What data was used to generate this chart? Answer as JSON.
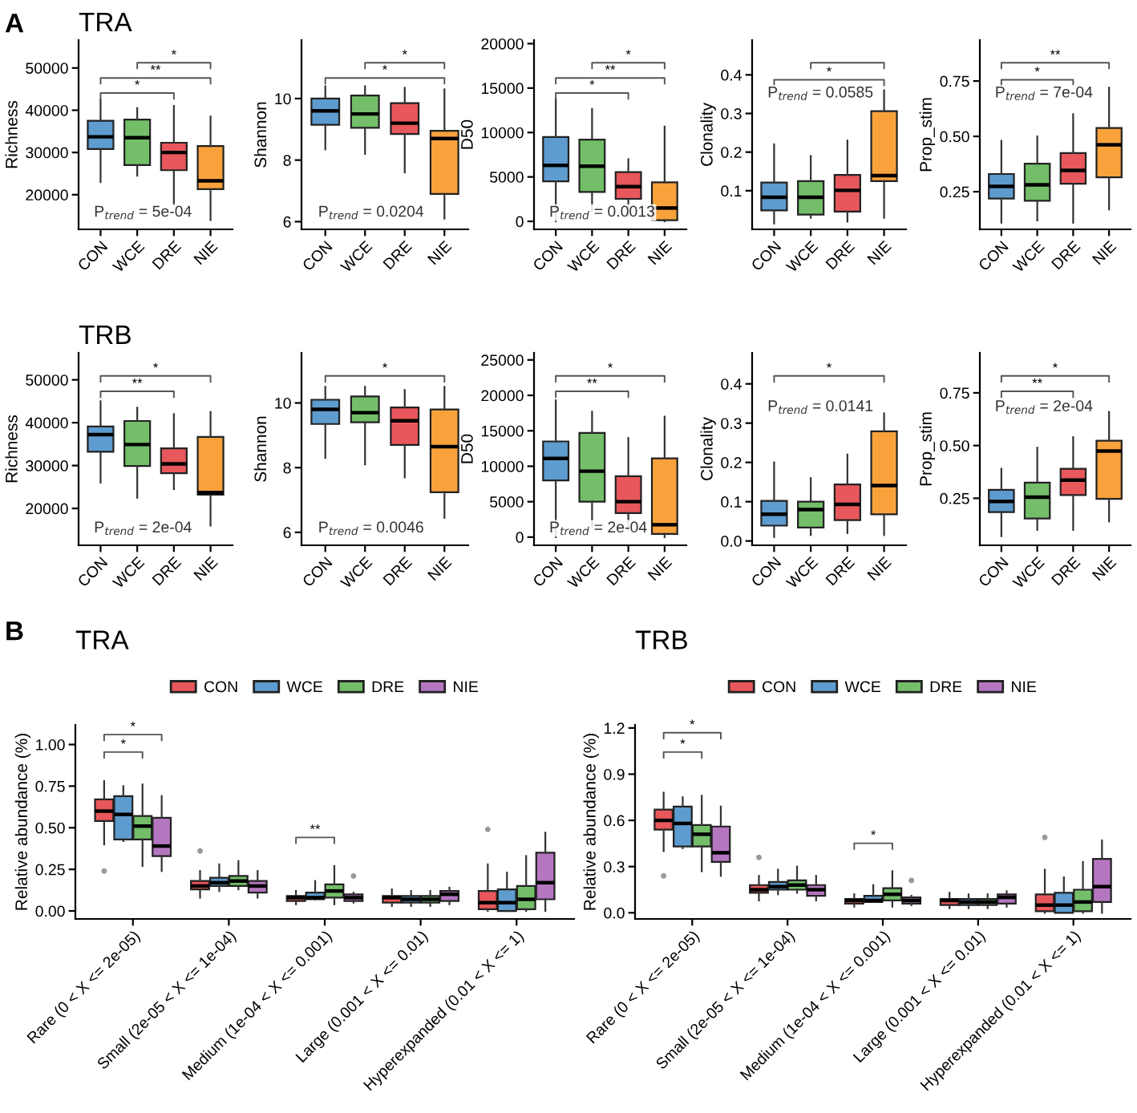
{
  "chart_data": [
    {
      "type": "box",
      "title": "TRA",
      "ylabel": "Richness",
      "categories": [
        "CON",
        "WCE",
        "DRE",
        "NIE"
      ],
      "colors": [
        "#5e9ccf",
        "#74be6a",
        "#e8575b",
        "#f9a23c"
      ],
      "ylim": [
        11800,
        56600
      ],
      "yticks": [
        20000,
        30000,
        40000,
        50000
      ],
      "grid": false,
      "annotations": [
        "A",
        "P$_{trend}$ = 5e-04",
        "*",
        "**",
        "*"
      ],
      "boxes": [
        {
          "low": 23000,
          "q1": 30800,
          "median": 33700,
          "q3": 37500,
          "high": 42500
        },
        {
          "low": 24500,
          "q1": 27000,
          "median": 33500,
          "q3": 37800,
          "high": 40500
        },
        {
          "low": 17500,
          "q1": 25800,
          "median": 30000,
          "q3": 32300,
          "high": 41000
        },
        {
          "low": 14000,
          "q1": 21300,
          "median": 23300,
          "q3": 31500,
          "high": 38500
        }
      ]
    },
    {
      "type": "box",
      "ylabel": "Shannon",
      "categories": [
        "CON",
        "WCE",
        "DRE",
        "NIE"
      ],
      "colors": [
        "#5e9ccf",
        "#74be6a",
        "#e8575b",
        "#f9a23c"
      ],
      "ylim": [
        5.75,
        11.9
      ],
      "yticks": [
        6,
        8,
        10
      ],
      "grid": false,
      "annotations": [
        "P$_{trend}$ = 0.0204",
        "*",
        "*"
      ],
      "boxes": [
        {
          "low": 8.35,
          "q1": 9.15,
          "median": 9.6,
          "q3": 10.0,
          "high": 10.4
        },
        {
          "low": 8.2,
          "q1": 9.05,
          "median": 9.5,
          "q3": 10.1,
          "high": 10.4
        },
        {
          "low": 7.6,
          "q1": 8.85,
          "median": 9.2,
          "q3": 9.85,
          "high": 10.35
        },
        {
          "low": 6.1,
          "q1": 6.9,
          "median": 8.7,
          "q3": 8.95,
          "high": 10.3
        }
      ]
    },
    {
      "type": "box",
      "ylabel": "D50",
      "categories": [
        "CON",
        "WCE",
        "DRE",
        "NIE"
      ],
      "colors": [
        "#5e9ccf",
        "#74be6a",
        "#e8575b",
        "#f9a23c"
      ],
      "ylim": [
        -900,
        20400
      ],
      "yticks": [
        0,
        5000,
        10000,
        15000,
        20000
      ],
      "grid": false,
      "annotations": [
        "P$_{trend}$ = 0.0013",
        "*",
        "**",
        "*"
      ],
      "boxes": [
        {
          "low": 0,
          "q1": 4500,
          "median": 6300,
          "q3": 9500,
          "high": 13800
        },
        {
          "low": 1200,
          "q1": 3300,
          "median": 6200,
          "q3": 9200,
          "high": 12650
        },
        {
          "low": 600,
          "q1": 2530,
          "median": 3900,
          "q3": 5540,
          "high": 7000
        },
        {
          "low": 0,
          "q1": 120,
          "median": 1500,
          "q3": 4400,
          "high": 10660
        }
      ]
    },
    {
      "type": "box",
      "ylabel": "Clonality",
      "categories": [
        "CON",
        "WCE",
        "DRE",
        "NIE"
      ],
      "colors": [
        "#5e9ccf",
        "#74be6a",
        "#e8575b",
        "#f9a23c"
      ],
      "ylim": [
        0,
        0.49
      ],
      "yticks": [
        0.1,
        0.2,
        0.3,
        0.4
      ],
      "grid": false,
      "annotations": [
        "P$_{trend}$ = 0.0585",
        "*"
      ],
      "boxes": [
        {
          "low": 0.015,
          "q1": 0.049,
          "median": 0.083,
          "q3": 0.121,
          "high": 0.22
        },
        {
          "low": 0.03,
          "q1": 0.038,
          "median": 0.083,
          "q3": 0.125,
          "high": 0.19
        },
        {
          "low": 0.02,
          "q1": 0.046,
          "median": 0.101,
          "q3": 0.141,
          "high": 0.23
        },
        {
          "low": 0.03,
          "q1": 0.125,
          "median": 0.139,
          "q3": 0.306,
          "high": 0.36
        }
      ]
    },
    {
      "type": "box",
      "ylabel": "Prop_stim",
      "categories": [
        "CON",
        "WCE",
        "DRE",
        "NIE"
      ],
      "colors": [
        "#5e9ccf",
        "#74be6a",
        "#e8575b",
        "#f9a23c"
      ],
      "ylim": [
        0.08,
        0.935
      ],
      "yticks": [
        0.25,
        {
          "value": 0.5,
          "label": "0.50"
        },
        0.75
      ],
      "grid": false,
      "annotations": [
        "P$_{trend}$ = 7e-04",
        "*",
        "**"
      ],
      "boxes": [
        {
          "low": 0.11,
          "q1": 0.219,
          "median": 0.274,
          "q3": 0.33,
          "high": 0.48
        },
        {
          "low": 0.12,
          "q1": 0.209,
          "median": 0.281,
          "q3": 0.377,
          "high": 0.5
        },
        {
          "low": 0.11,
          "q1": 0.286,
          "median": 0.346,
          "q3": 0.425,
          "high": 0.6
        },
        {
          "low": 0.17,
          "q1": 0.315,
          "median": 0.462,
          "q3": 0.538,
          "high": 0.72
        }
      ]
    },
    {
      "type": "box",
      "title": "TRB",
      "ylabel": "Richness",
      "categories": [
        "CON",
        "WCE",
        "DRE",
        "NIE"
      ],
      "colors": [
        "#5e9ccf",
        "#74be6a",
        "#e8575b",
        "#f9a23c"
      ],
      "ylim": [
        11400,
        56300
      ],
      "yticks": [
        20000,
        30000,
        40000,
        50000
      ],
      "grid": false,
      "annotations": [
        "P$_{trend}$ = 2e-04",
        "**",
        "*"
      ],
      "boxes": [
        {
          "low": 26000,
          "q1": 33200,
          "median": 37200,
          "q3": 39100,
          "high": 45000
        },
        {
          "low": 22500,
          "q1": 29900,
          "median": 34900,
          "q3": 40400,
          "high": 43500
        },
        {
          "low": 24500,
          "q1": 28200,
          "median": 30400,
          "q3": 34000,
          "high": 42000
        },
        {
          "low": 16000,
          "q1": 23200,
          "median": 23700,
          "q3": 36700,
          "high": 42500
        }
      ]
    },
    {
      "type": "box",
      "ylabel": "Shannon",
      "categories": [
        "CON",
        "WCE",
        "DRE",
        "NIE"
      ],
      "colors": [
        "#5e9ccf",
        "#74be6a",
        "#e8575b",
        "#f9a23c"
      ],
      "ylim": [
        5.6,
        11.55
      ],
      "yticks": [
        6,
        8,
        10
      ],
      "grid": false,
      "annotations": [
        "P$_{trend}$ = 0.0046",
        "*"
      ],
      "boxes": [
        {
          "low": 8.3,
          "q1": 9.35,
          "median": 9.8,
          "q3": 10.1,
          "high": 10.5
        },
        {
          "low": 8.1,
          "q1": 9.4,
          "median": 9.7,
          "q3": 10.2,
          "high": 10.5
        },
        {
          "low": 7.7,
          "q1": 8.7,
          "median": 9.45,
          "q3": 9.86,
          "high": 10.4
        },
        {
          "low": 6.45,
          "q1": 7.24,
          "median": 8.65,
          "q3": 9.8,
          "high": 10.5
        }
      ]
    },
    {
      "type": "box",
      "ylabel": "D50",
      "categories": [
        "CON",
        "WCE",
        "DRE",
        "NIE"
      ],
      "colors": [
        "#5e9ccf",
        "#74be6a",
        "#e8575b",
        "#f9a23c"
      ],
      "ylim": [
        -1150,
        26000
      ],
      "yticks": [
        0,
        5000,
        10000,
        15000,
        20000,
        25000
      ],
      "grid": false,
      "annotations": [
        "P$_{trend}$ = 2e-04",
        "**",
        "*"
      ],
      "boxes": [
        {
          "low": 0,
          "q1": 8000,
          "median": 11100,
          "q3": 13500,
          "high": 19300
        },
        {
          "low": 1500,
          "q1": 5000,
          "median": 9300,
          "q3": 14700,
          "high": 17700
        },
        {
          "low": 1000,
          "q1": 3400,
          "median": 5000,
          "q3": 8600,
          "high": 14000
        },
        {
          "low": 0,
          "q1": 450,
          "median": 1750,
          "q3": 11100,
          "high": 17000
        }
      ]
    },
    {
      "type": "box",
      "ylabel": "Clonality",
      "categories": [
        "CON",
        "WCE",
        "DRE",
        "NIE"
      ],
      "colors": [
        "#5e9ccf",
        "#74be6a",
        "#e8575b",
        "#f9a23c"
      ],
      "ylim": [
        -0.011,
        0.479
      ],
      "yticks": [
        {
          "value": 0,
          "label": "0.0"
        },
        0.1,
        0.2,
        0.3,
        0.4
      ],
      "grid": false,
      "annotations": [
        "P$_{trend}$ = 0.0141",
        "*"
      ],
      "boxes": [
        {
          "low": 0.01,
          "q1": 0.039,
          "median": 0.068,
          "q3": 0.102,
          "high": 0.2
        },
        {
          "low": 0.015,
          "q1": 0.034,
          "median": 0.08,
          "q3": 0.1,
          "high": 0.16
        },
        {
          "low": 0.02,
          "q1": 0.053,
          "median": 0.093,
          "q3": 0.144,
          "high": 0.22
        },
        {
          "low": 0.015,
          "q1": 0.068,
          "median": 0.141,
          "q3": 0.279,
          "high": 0.325
        }
      ]
    },
    {
      "type": "box",
      "ylabel": "Prop_stim",
      "categories": [
        "CON",
        "WCE",
        "DRE",
        "NIE"
      ],
      "colors": [
        "#5e9ccf",
        "#74be6a",
        "#e8575b",
        "#f9a23c"
      ],
      "ylim": [
        0.027,
        0.94
      ],
      "yticks": [
        0.25,
        {
          "value": 0.5,
          "label": "0.50"
        },
        0.75
      ],
      "grid": false,
      "annotations": [
        "P$_{trend}$ = 2e-04",
        "**",
        "*"
      ],
      "boxes": [
        {
          "low": 0.07,
          "q1": 0.184,
          "median": 0.235,
          "q3": 0.29,
          "high": 0.39
        },
        {
          "low": 0.1,
          "q1": 0.154,
          "median": 0.255,
          "q3": 0.324,
          "high": 0.49
        },
        {
          "low": 0.1,
          "q1": 0.265,
          "median": 0.336,
          "q3": 0.39,
          "high": 0.54
        },
        {
          "low": 0.14,
          "q1": 0.247,
          "median": 0.474,
          "q3": 0.523,
          "high": 0.66
        }
      ]
    },
    {
      "type": "box",
      "title": "TRA",
      "ylabel": "Relative abundance (%)",
      "categories": [
        "Rare (0 < X <= 2e-05)",
        "Small (2e-05 < X <= 1e-04)",
        "Medium (1e-04 < X <= 0.001)",
        "Large (0.001 < X <= 0.01)",
        "Hyperexpanded (0.01 < X <= 1)"
      ],
      "ylim": [
        -0.048,
        1.118
      ],
      "yticks": [
        {
          "value": 0,
          "label": "0.00"
        },
        0.25,
        {
          "value": 0.5,
          "label": "0.50"
        },
        0.75,
        {
          "value": 1,
          "label": "1.00"
        }
      ],
      "grid": false,
      "legend": "top",
      "annotations": [
        "B",
        "*",
        "*",
        "**"
      ],
      "series": [
        {
          "name": "CON",
          "color": "#e8575b",
          "boxes": [
            {
              "low": 0.4,
              "q1": 0.54,
              "median": 0.6,
              "q3": 0.67,
              "high": 0.78,
              "outliers": [
                0.24
              ]
            },
            {
              "low": 0.08,
              "q1": 0.13,
              "median": 0.15,
              "q3": 0.18,
              "high": 0.24,
              "outliers": [
                0.36
              ]
            },
            {
              "low": 0.04,
              "q1": 0.06,
              "median": 0.08,
              "q3": 0.09,
              "high": 0.12
            },
            {
              "low": 0.03,
              "q1": 0.05,
              "median": 0.08,
              "q3": 0.09,
              "high": 0.13
            },
            {
              "low": 0.0,
              "q1": 0.01,
              "median": 0.05,
              "q3": 0.12,
              "high": 0.28,
              "outliers": [
                0.49
              ]
            }
          ]
        },
        {
          "name": "WCE",
          "color": "#5e9ccf",
          "boxes": [
            {
              "low": 0.42,
              "q1": 0.43,
              "median": 0.58,
              "q3": 0.69,
              "high": 0.75
            },
            {
              "low": 0.12,
              "q1": 0.15,
              "median": 0.17,
              "q3": 0.2,
              "high": 0.28
            },
            {
              "low": 0.07,
              "q1": 0.07,
              "median": 0.08,
              "q3": 0.11,
              "high": 0.18
            },
            {
              "low": 0.03,
              "q1": 0.05,
              "median": 0.07,
              "q3": 0.09,
              "high": 0.12
            },
            {
              "low": 0.0,
              "q1": 0.0,
              "median": 0.05,
              "q3": 0.13,
              "high": 0.23
            }
          ]
        },
        {
          "name": "DRE",
          "color": "#74be6a",
          "boxes": [
            {
              "low": 0.27,
              "q1": 0.43,
              "median": 0.51,
              "q3": 0.57,
              "high": 0.76
            },
            {
              "low": 0.13,
              "q1": 0.15,
              "median": 0.18,
              "q3": 0.21,
              "high": 0.3
            },
            {
              "low": 0.04,
              "q1": 0.08,
              "median": 0.12,
              "q3": 0.16,
              "high": 0.27
            },
            {
              "low": 0.03,
              "q1": 0.05,
              "median": 0.07,
              "q3": 0.09,
              "high": 0.12
            },
            {
              "low": 0.0,
              "q1": 0.01,
              "median": 0.07,
              "q3": 0.15,
              "high": 0.33
            }
          ]
        },
        {
          "name": "NIE",
          "color": "#b576c0",
          "boxes": [
            {
              "low": 0.24,
              "q1": 0.33,
              "median": 0.39,
              "q3": 0.56,
              "high": 0.69
            },
            {
              "low": 0.08,
              "q1": 0.11,
              "median": 0.15,
              "q3": 0.18,
              "high": 0.24
            },
            {
              "low": 0.05,
              "q1": 0.06,
              "median": 0.08,
              "q3": 0.1,
              "high": 0.11,
              "outliers": [
                0.21
              ]
            },
            {
              "low": 0.04,
              "q1": 0.06,
              "median": 0.1,
              "q3": 0.12,
              "high": 0.14
            },
            {
              "low": 0.0,
              "q1": 0.07,
              "median": 0.17,
              "q3": 0.35,
              "high": 0.47
            }
          ]
        }
      ]
    },
    {
      "type": "box",
      "title": "TRB",
      "ylabel": "Relative abundance (%)",
      "categories": [
        "Rare (0 < X <= 2e-05)",
        "Small (2e-05 < X <= 1e-04)",
        "Medium (1e-04 < X <= 0.001)",
        "Large (0.001 < X <= 0.01)",
        "Hyperexpanded (0.01 < X <= 1)"
      ],
      "ylim": [
        -0.04,
        1.22
      ],
      "yticks": [
        {
          "value": 0,
          "label": "0.0"
        },
        0.3,
        0.6,
        0.9,
        1.2
      ],
      "grid": false,
      "legend": "top",
      "annotations": [
        "*",
        "*",
        "*"
      ],
      "series": [
        {
          "name": "CON",
          "color": "#e8575b",
          "boxes": [
            {
              "low": 0.4,
              "q1": 0.54,
              "median": 0.6,
              "q3": 0.67,
              "high": 0.78,
              "outliers": [
                0.24
              ]
            },
            {
              "low": 0.08,
              "q1": 0.13,
              "median": 0.15,
              "q3": 0.18,
              "high": 0.24,
              "outliers": [
                0.36
              ]
            },
            {
              "low": 0.04,
              "q1": 0.06,
              "median": 0.08,
              "q3": 0.09,
              "high": 0.12
            },
            {
              "low": 0.03,
              "q1": 0.05,
              "median": 0.08,
              "q3": 0.09,
              "high": 0.13
            },
            {
              "low": 0.0,
              "q1": 0.01,
              "median": 0.05,
              "q3": 0.12,
              "high": 0.28,
              "outliers": [
                0.49
              ]
            }
          ]
        },
        {
          "name": "WCE",
          "color": "#5e9ccf",
          "boxes": [
            {
              "low": 0.42,
              "q1": 0.43,
              "median": 0.58,
              "q3": 0.69,
              "high": 0.75
            },
            {
              "low": 0.12,
              "q1": 0.15,
              "median": 0.17,
              "q3": 0.2,
              "high": 0.28
            },
            {
              "low": 0.07,
              "q1": 0.07,
              "median": 0.08,
              "q3": 0.11,
              "high": 0.18
            },
            {
              "low": 0.03,
              "q1": 0.05,
              "median": 0.07,
              "q3": 0.09,
              "high": 0.12
            },
            {
              "low": 0.0,
              "q1": 0.0,
              "median": 0.05,
              "q3": 0.13,
              "high": 0.23
            }
          ]
        },
        {
          "name": "DRE",
          "color": "#74be6a",
          "boxes": [
            {
              "low": 0.27,
              "q1": 0.43,
              "median": 0.51,
              "q3": 0.57,
              "high": 0.76
            },
            {
              "low": 0.13,
              "q1": 0.15,
              "median": 0.18,
              "q3": 0.21,
              "high": 0.3
            },
            {
              "low": 0.04,
              "q1": 0.08,
              "median": 0.12,
              "q3": 0.16,
              "high": 0.27
            },
            {
              "low": 0.03,
              "q1": 0.05,
              "median": 0.07,
              "q3": 0.09,
              "high": 0.12
            },
            {
              "low": 0.0,
              "q1": 0.01,
              "median": 0.07,
              "q3": 0.15,
              "high": 0.33
            }
          ]
        },
        {
          "name": "NIE",
          "color": "#b576c0",
          "boxes": [
            {
              "low": 0.24,
              "q1": 0.33,
              "median": 0.39,
              "q3": 0.56,
              "high": 0.69
            },
            {
              "low": 0.08,
              "q1": 0.11,
              "median": 0.15,
              "q3": 0.18,
              "high": 0.24
            },
            {
              "low": 0.05,
              "q1": 0.06,
              "median": 0.08,
              "q3": 0.1,
              "high": 0.11,
              "outliers": [
                0.21
              ]
            },
            {
              "low": 0.04,
              "q1": 0.06,
              "median": 0.1,
              "q3": 0.12,
              "high": 0.14
            },
            {
              "low": 0.0,
              "q1": 0.07,
              "median": 0.17,
              "q3": 0.35,
              "high": 0.47
            }
          ]
        }
      ]
    }
  ]
}
